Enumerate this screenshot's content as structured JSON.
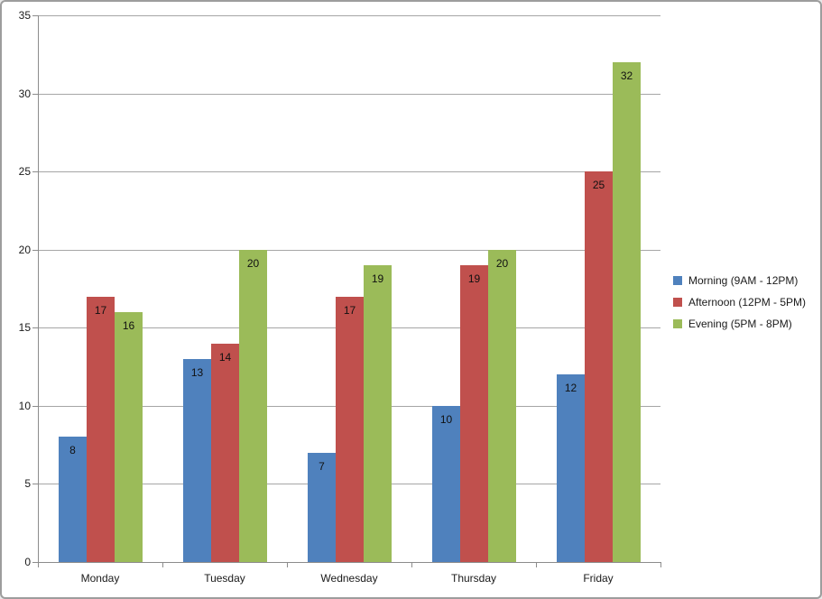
{
  "window": {
    "background": "#FFFFFF",
    "frame_border_color": "#9D9D9D"
  },
  "chart_data": {
    "type": "bar",
    "title": "",
    "xlabel": "",
    "ylabel": "",
    "categories": [
      "Monday",
      "Tuesday",
      "Wednesday",
      "Thursday",
      "Friday"
    ],
    "series": [
      {
        "name": "Morning (9AM - 12PM)",
        "color": "#4F81BD",
        "values": [
          8,
          13,
          7,
          10,
          12
        ]
      },
      {
        "name": "Afternoon (12PM - 5PM)",
        "color": "#C0504D",
        "values": [
          17,
          14,
          17,
          19,
          25
        ]
      },
      {
        "name": "Evening (5PM - 8PM)",
        "color": "#9BBB59",
        "values": [
          16,
          20,
          19,
          20,
          32
        ]
      }
    ],
    "ylim": [
      0,
      35
    ],
    "yticks": [
      0,
      5,
      10,
      15,
      20,
      25,
      30,
      35
    ],
    "grid": true,
    "gridline_color": "#A6A6A6",
    "axis_color": "#8C8C8C",
    "tick_label_color": "#1A1A1A",
    "data_label_color": "#111111",
    "legend_position": "right",
    "data_labels": "inside-end"
  }
}
